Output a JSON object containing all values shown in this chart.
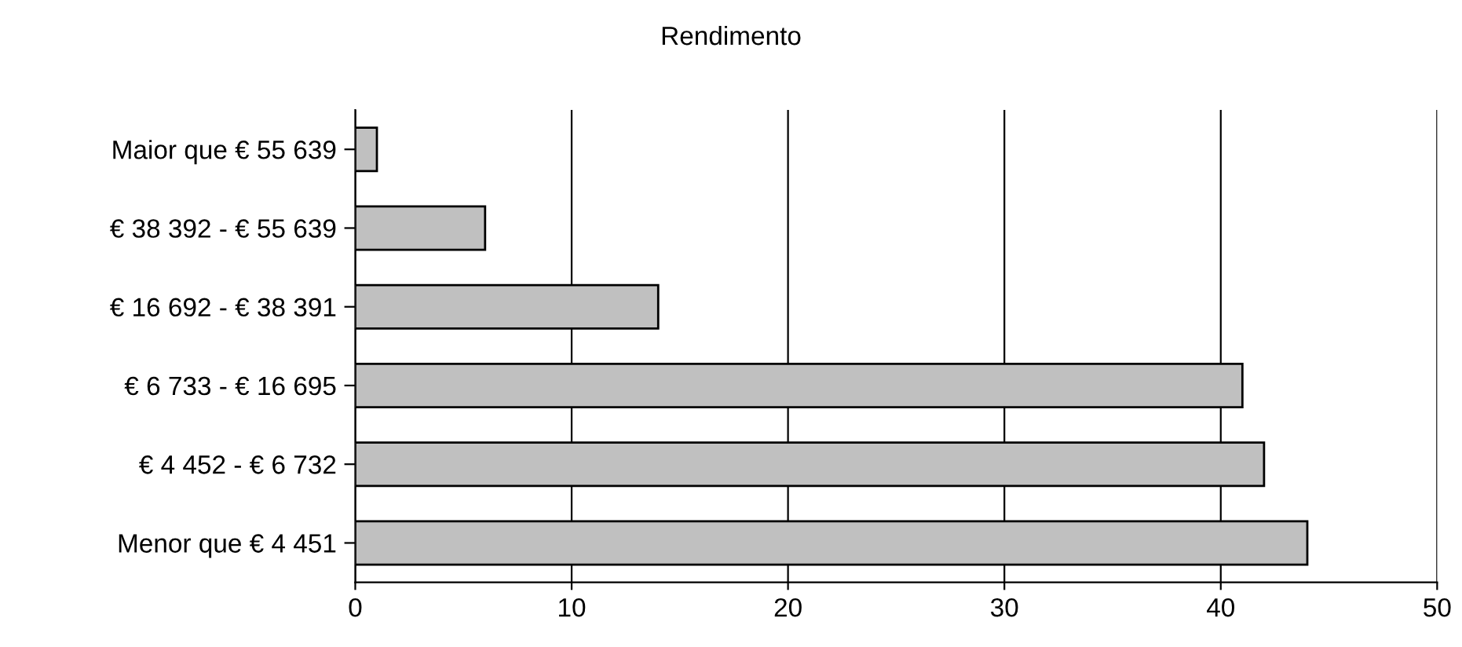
{
  "chart_data": {
    "type": "bar",
    "orientation": "horizontal",
    "title": "Rendimento",
    "categories": [
      "Maior que € 55 639",
      "€ 38 392 - € 55 639",
      "€ 16 692 - € 38 391",
      "€ 6 733 - € 16 695",
      "€ 4 452 - € 6 732",
      "Menor que € 4 451"
    ],
    "values": [
      1,
      6,
      14,
      41,
      42,
      44
    ],
    "color": "#c0c0c0",
    "xlim": [
      0,
      50
    ],
    "xticks": [
      0,
      10,
      20,
      30,
      40,
      50
    ],
    "grid": "x",
    "legend": false
  }
}
